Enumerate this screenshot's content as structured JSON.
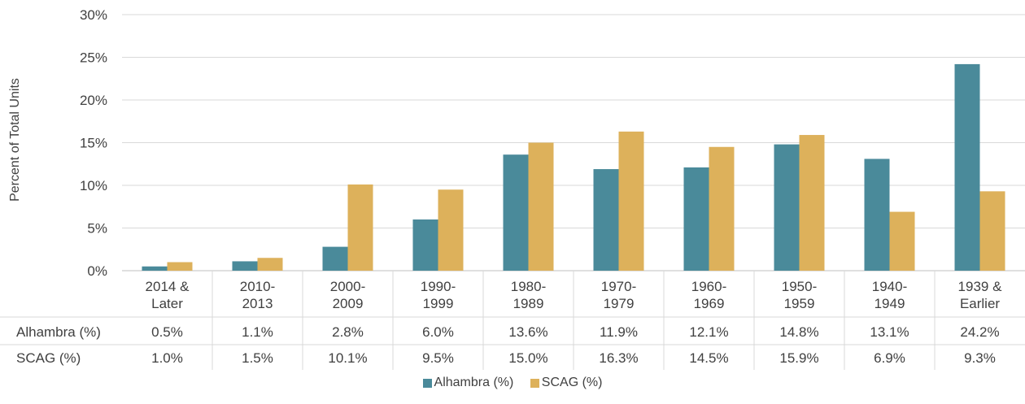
{
  "chart_data": {
    "type": "bar",
    "ylabel": "Percent of Total Units",
    "xlabel": "",
    "ylim": [
      0,
      30
    ],
    "yticks": [
      "0%",
      "5%",
      "10%",
      "15%",
      "20%",
      "25%",
      "30%"
    ],
    "grid": true,
    "legend_position": "bottom",
    "categories": [
      [
        "2014 &",
        "Later"
      ],
      [
        "2010-",
        "2013"
      ],
      [
        "2000-",
        "2009"
      ],
      [
        "1990-",
        "1999"
      ],
      [
        "1980-",
        "1989"
      ],
      [
        "1970-",
        "1979"
      ],
      [
        "1960-",
        "1969"
      ],
      [
        "1950-",
        "1959"
      ],
      [
        "1940-",
        "1949"
      ],
      [
        "1939 &",
        "Earlier"
      ]
    ],
    "series": [
      {
        "name": "Alhambra (%)",
        "color": "#4a8a9a",
        "values": [
          0.5,
          1.1,
          2.8,
          6.0,
          13.6,
          11.9,
          12.1,
          14.8,
          13.1,
          24.2
        ],
        "labels": [
          "0.5%",
          "1.1%",
          "2.8%",
          "6.0%",
          "13.6%",
          "11.9%",
          "12.1%",
          "14.8%",
          "13.1%",
          "24.2%"
        ]
      },
      {
        "name": "SCAG (%)",
        "color": "#ddb15b",
        "values": [
          1.0,
          1.5,
          10.1,
          9.5,
          15.0,
          16.3,
          14.5,
          15.9,
          6.9,
          9.3
        ],
        "labels": [
          "1.0%",
          "1.5%",
          "10.1%",
          "9.5%",
          "15.0%",
          "16.3%",
          "14.5%",
          "15.9%",
          "6.9%",
          "9.3%"
        ]
      }
    ]
  }
}
